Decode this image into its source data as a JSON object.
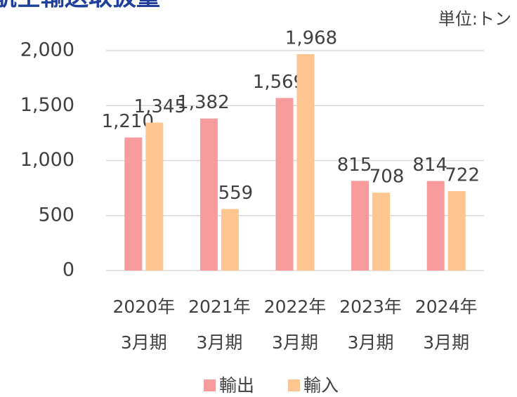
{
  "chart_data": {
    "type": "bar",
    "title": "航空輸送取扱量",
    "unit_label": "単位:トン",
    "categories": [
      [
        "2020年",
        "3月期"
      ],
      [
        "2021年",
        "3月期"
      ],
      [
        "2022年",
        "3月期"
      ],
      [
        "2023年",
        "3月期"
      ],
      [
        "2024年",
        "3月期"
      ]
    ],
    "series": [
      {
        "name": "輸出",
        "color": "#f79b9c",
        "values": [
          1210,
          1382,
          1569,
          815,
          814
        ],
        "value_labels": [
          "1,210",
          "1,382",
          "1,569",
          "815",
          "814"
        ]
      },
      {
        "name": "輸入",
        "color": "#fdc58f",
        "values": [
          1345,
          559,
          1968,
          708,
          722
        ],
        "value_labels": [
          "1,345",
          "559",
          "1,968",
          "708",
          "722"
        ]
      }
    ],
    "ylim": [
      0,
      2000
    ],
    "yticks": [
      0,
      500,
      {
        "value": 1000,
        "label": "1,000"
      },
      {
        "value": 1500,
        "label": "1,500"
      },
      {
        "value": 2000,
        "label": "2,000"
      }
    ],
    "grid": true,
    "legend": "bottom"
  }
}
